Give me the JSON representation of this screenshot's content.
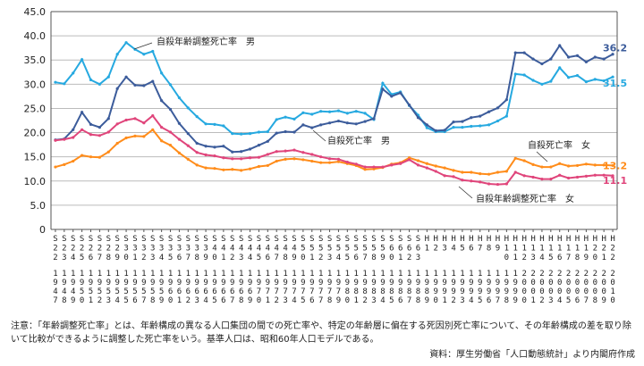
{
  "chart_data": {
    "type": "line",
    "title": "",
    "xlabel": "",
    "ylabel": "",
    "ylim": [
      0,
      45
    ],
    "y_ticks": [
      "0",
      "5.0",
      "10.0",
      "15.0",
      "20.0",
      "25.0",
      "30.0",
      "35.0",
      "40.0",
      "45.0"
    ],
    "grid": "horizontal",
    "categories": [
      "S22",
      "S23",
      "S24",
      "S25",
      "S26",
      "S27",
      "S28",
      "S29",
      "S30",
      "S31",
      "S32",
      "S33",
      "S34",
      "S35",
      "S36",
      "S37",
      "S38",
      "S39",
      "S40",
      "S41",
      "S42",
      "S43",
      "S44",
      "S45",
      "S46",
      "S47",
      "S48",
      "S49",
      "S50",
      "S51",
      "S52",
      "S53",
      "S54",
      "S55",
      "S56",
      "S57",
      "S58",
      "S59",
      "S60",
      "S61",
      "S62",
      "S63",
      "H1",
      "H2",
      "H3",
      "H4",
      "H5",
      "H6",
      "H7",
      "H8",
      "H9",
      "H10",
      "H11",
      "H12",
      "H13",
      "H14",
      "H15",
      "H16",
      "H17",
      "H18",
      "H19",
      "H20",
      "H21",
      "H22"
    ],
    "tick_labels": [
      {
        "era": "S",
        "num": "22",
        "year": "1947"
      },
      {
        "era": "S",
        "num": "23",
        "year": "1948"
      },
      {
        "era": "S",
        "num": "24",
        "year": "1949"
      },
      {
        "era": "S",
        "num": "25",
        "year": "1950"
      },
      {
        "era": "S",
        "num": "26",
        "year": "1951"
      },
      {
        "era": "S",
        "num": "27",
        "year": "1952"
      },
      {
        "era": "S",
        "num": "28",
        "year": "1953"
      },
      {
        "era": "S",
        "num": "29",
        "year": "1954"
      },
      {
        "era": "S",
        "num": "30",
        "year": "1955"
      },
      {
        "era": "S",
        "num": "31",
        "year": "1956"
      },
      {
        "era": "S",
        "num": "32",
        "year": "1957"
      },
      {
        "era": "S",
        "num": "33",
        "year": "1958"
      },
      {
        "era": "S",
        "num": "34",
        "year": "1959"
      },
      {
        "era": "S",
        "num": "35",
        "year": "1960"
      },
      {
        "era": "S",
        "num": "36",
        "year": "1961"
      },
      {
        "era": "S",
        "num": "37",
        "year": "1962"
      },
      {
        "era": "S",
        "num": "38",
        "year": "1963"
      },
      {
        "era": "S",
        "num": "39",
        "year": "1964"
      },
      {
        "era": "S",
        "num": "40",
        "year": "1965"
      },
      {
        "era": "S",
        "num": "41",
        "year": "1966"
      },
      {
        "era": "S",
        "num": "42",
        "year": "1967"
      },
      {
        "era": "S",
        "num": "43",
        "year": "1968"
      },
      {
        "era": "S",
        "num": "44",
        "year": "1969"
      },
      {
        "era": "S",
        "num": "45",
        "year": "1970"
      },
      {
        "era": "S",
        "num": "46",
        "year": "1971"
      },
      {
        "era": "S",
        "num": "47",
        "year": "1972"
      },
      {
        "era": "S",
        "num": "48",
        "year": "1973"
      },
      {
        "era": "S",
        "num": "49",
        "year": "1974"
      },
      {
        "era": "S",
        "num": "50",
        "year": "1975"
      },
      {
        "era": "S",
        "num": "51",
        "year": "1976"
      },
      {
        "era": "S",
        "num": "52",
        "year": "1977"
      },
      {
        "era": "S",
        "num": "53",
        "year": "1978"
      },
      {
        "era": "S",
        "num": "54",
        "year": "1979"
      },
      {
        "era": "S",
        "num": "55",
        "year": "1980"
      },
      {
        "era": "S",
        "num": "56",
        "year": "1981"
      },
      {
        "era": "S",
        "num": "57",
        "year": "1982"
      },
      {
        "era": "S",
        "num": "58",
        "year": "1983"
      },
      {
        "era": "S",
        "num": "59",
        "year": "1984"
      },
      {
        "era": "S",
        "num": "60",
        "year": "1985"
      },
      {
        "era": "S",
        "num": "61",
        "year": "1986"
      },
      {
        "era": "S",
        "num": "62",
        "year": "1987"
      },
      {
        "era": "S",
        "num": "63",
        "year": "1988"
      },
      {
        "era": "H",
        "num": "1",
        "year": "1989"
      },
      {
        "era": "H",
        "num": "2",
        "year": "1990"
      },
      {
        "era": "H",
        "num": "3",
        "year": "1991"
      },
      {
        "era": "H",
        "num": "4",
        "year": "1992"
      },
      {
        "era": "H",
        "num": "5",
        "year": "1993"
      },
      {
        "era": "H",
        "num": "6",
        "year": "1994"
      },
      {
        "era": "H",
        "num": "7",
        "year": "1995"
      },
      {
        "era": "H",
        "num": "8",
        "year": "1996"
      },
      {
        "era": "H",
        "num": "9",
        "year": "1997"
      },
      {
        "era": "H",
        "num": "10",
        "year": "1998"
      },
      {
        "era": "H",
        "num": "11",
        "year": "1999"
      },
      {
        "era": "H",
        "num": "12",
        "year": "2000"
      },
      {
        "era": "H",
        "num": "13",
        "year": "2001"
      },
      {
        "era": "H",
        "num": "14",
        "year": "2002"
      },
      {
        "era": "H",
        "num": "15",
        "year": "2003"
      },
      {
        "era": "H",
        "num": "16",
        "year": "2004"
      },
      {
        "era": "H",
        "num": "17",
        "year": "2005"
      },
      {
        "era": "H",
        "num": "18",
        "year": "2006"
      },
      {
        "era": "H",
        "num": "19",
        "year": "2007"
      },
      {
        "era": "H",
        "num": "20",
        "year": "2008"
      },
      {
        "era": "H",
        "num": "21",
        "year": "2009"
      },
      {
        "era": "H",
        "num": "22",
        "year": "2010"
      }
    ],
    "series": [
      {
        "name": "自殺年齢調整死亡率　男",
        "color": "#26a9e0",
        "end_label": "31.5",
        "values": [
          30.4,
          30.1,
          32.3,
          35.1,
          30.9,
          30.0,
          31.5,
          36.2,
          38.6,
          37.2,
          36.2,
          36.8,
          32.3,
          29.9,
          27.2,
          25.1,
          23.3,
          21.8,
          21.7,
          21.4,
          19.8,
          19.7,
          19.8,
          20.1,
          20.2,
          22.7,
          23.2,
          22.8,
          24.1,
          23.8,
          24.4,
          24.3,
          24.5,
          24.0,
          24.4,
          24.0,
          22.7,
          30.2,
          27.9,
          28.4,
          25.6,
          23.6,
          21.0,
          20.2,
          20.2,
          21.1,
          21.1,
          21.3,
          21.4,
          21.6,
          22.4,
          23.4,
          32.1,
          31.9,
          30.8,
          30.0,
          30.6,
          33.4,
          31.4,
          31.8,
          30.5,
          31.0,
          30.7,
          31.5
        ]
      },
      {
        "name": "自殺死亡率　男",
        "color": "#3c5c9b",
        "end_label": "36.2",
        "values": [
          18.5,
          18.7,
          20.6,
          24.2,
          21.7,
          21.1,
          22.9,
          29.1,
          31.5,
          29.8,
          29.7,
          30.6,
          26.6,
          24.8,
          21.9,
          19.8,
          17.8,
          17.2,
          17.0,
          17.2,
          16.0,
          16.1,
          16.6,
          17.4,
          18.2,
          19.9,
          20.2,
          20.1,
          21.6,
          21.0,
          21.6,
          22.0,
          22.4,
          22.0,
          21.8,
          22.3,
          22.9,
          29.0,
          27.5,
          28.2,
          25.7,
          23.1,
          21.6,
          20.4,
          20.5,
          22.2,
          22.3,
          23.1,
          23.4,
          24.3,
          25.1,
          26.8,
          36.5,
          36.5,
          35.2,
          34.2,
          35.2,
          38.0,
          35.6,
          35.9,
          34.6,
          35.6,
          35.2,
          36.2
        ]
      },
      {
        "name": "自殺死亡率　女",
        "color": "#ff8c1a",
        "end_label": "13.2",
        "values": [
          12.9,
          13.4,
          14.1,
          15.3,
          15.0,
          14.9,
          16.0,
          17.8,
          18.9,
          19.3,
          19.2,
          20.6,
          18.3,
          17.4,
          15.8,
          14.5,
          13.3,
          12.7,
          12.6,
          12.3,
          12.4,
          12.2,
          12.5,
          13.0,
          13.2,
          14.1,
          14.5,
          14.6,
          14.4,
          14.1,
          13.8,
          13.8,
          14.0,
          13.6,
          13.2,
          12.4,
          12.5,
          12.8,
          13.5,
          13.8,
          14.8,
          14.2,
          13.6,
          13.1,
          12.7,
          12.2,
          11.8,
          11.8,
          11.5,
          11.4,
          11.8,
          12.0,
          14.7,
          14.2,
          13.4,
          12.9,
          12.9,
          13.6,
          13.1,
          13.2,
          13.5,
          13.3,
          13.3,
          13.2
        ]
      },
      {
        "name": "自殺年齢調整死亡率　女",
        "color": "#e0457b",
        "end_label": "11.1",
        "values": [
          18.4,
          18.6,
          19.0,
          20.6,
          19.6,
          19.4,
          20.1,
          21.8,
          22.6,
          22.9,
          22.0,
          23.5,
          21.1,
          20.1,
          18.6,
          17.3,
          15.9,
          15.4,
          15.2,
          14.8,
          14.6,
          14.6,
          14.8,
          14.9,
          15.5,
          16.1,
          16.2,
          16.4,
          15.9,
          15.5,
          15.0,
          14.6,
          14.5,
          13.9,
          13.5,
          12.9,
          12.9,
          12.9,
          13.3,
          13.6,
          14.4,
          13.3,
          12.7,
          12.0,
          11.1,
          10.9,
          10.2,
          10.0,
          9.8,
          9.4,
          9.3,
          9.4,
          11.8,
          11.1,
          10.8,
          10.4,
          10.4,
          11.2,
          10.6,
          10.8,
          11.0,
          11.2,
          11.2,
          11.1
        ]
      }
    ],
    "annotations": [
      {
        "text": "自殺年齢調整死亡率　男",
        "series": 0
      },
      {
        "text": "自殺死亡率　男",
        "series": 1
      },
      {
        "text": "自殺死亡率　女",
        "series": 2
      },
      {
        "text": "自殺年齢調整死亡率　女",
        "series": 3
      }
    ]
  },
  "footer": {
    "note": "注意：「年齢調整死亡率」とは、年齢構成の異なる人口集団の間での死亡率や、特定の年齢層に偏在する死因別死亡率について、その年齢構成の差を取り除いて比較ができるように調整した死亡率をいう。基準人口は、昭和60年人口モデルである。",
    "source": "資料：厚生労働省「人口動態統計」より内閣府作成"
  }
}
